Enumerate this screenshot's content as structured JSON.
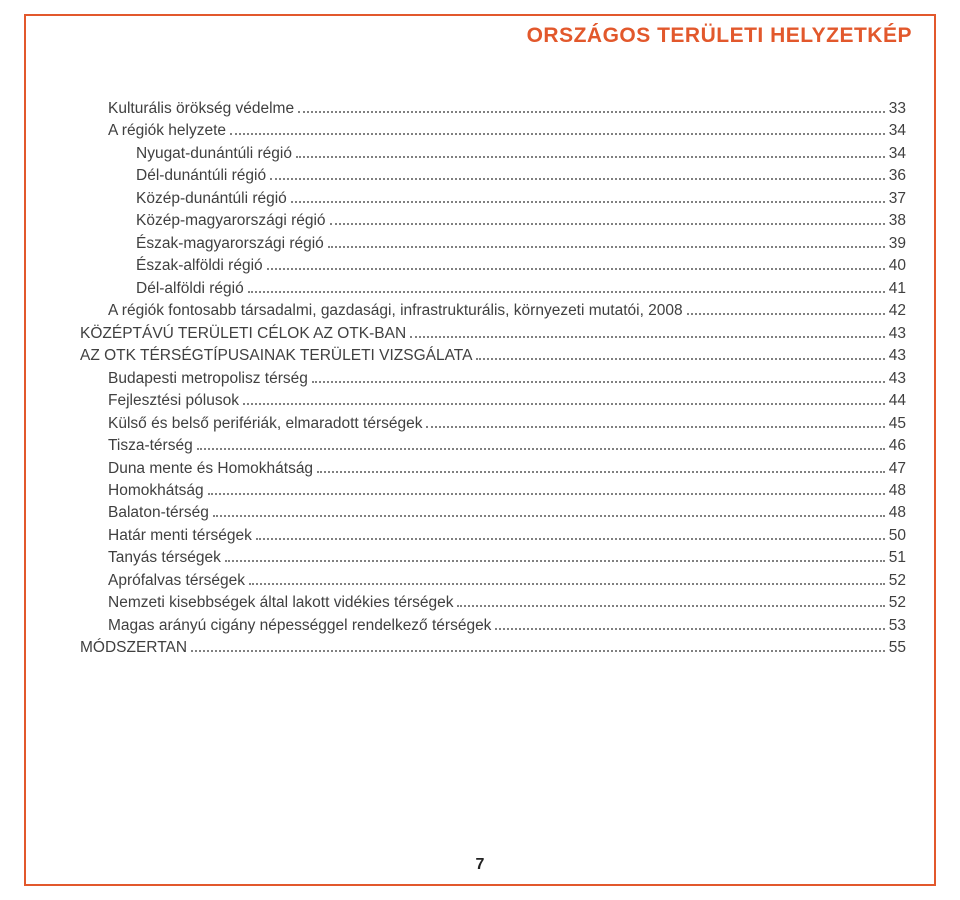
{
  "header": {
    "title": "ORSZÁGOS TERÜLETI HELYZETKÉP"
  },
  "colors": {
    "accent": "#e2582c",
    "text": "#404040",
    "dots": "#808080",
    "background": "#ffffff"
  },
  "typography": {
    "header_fontsize": 21,
    "header_weight": 700,
    "toc_fontsize": 15.5,
    "page_num_fontsize": 16
  },
  "toc": [
    {
      "label": "Kulturális örökség védelme",
      "page": "33",
      "indent": 1
    },
    {
      "label": "A régiók helyzete",
      "page": "34",
      "indent": 1
    },
    {
      "label": "Nyugat-dunántúli régió",
      "page": "34",
      "indent": 2
    },
    {
      "label": "Dél-dunántúli régió",
      "page": "36",
      "indent": 2
    },
    {
      "label": "Közép-dunántúli régió",
      "page": "37",
      "indent": 2
    },
    {
      "label": "Közép-magyarországi régió",
      "page": "38",
      "indent": 2
    },
    {
      "label": "Észak-magyarországi régió",
      "page": "39",
      "indent": 2
    },
    {
      "label": "Észak-alföldi régió",
      "page": "40",
      "indent": 2
    },
    {
      "label": "Dél-alföldi régió",
      "page": "41",
      "indent": 2
    },
    {
      "label": "A régiók fontosabb társadalmi, gazdasági, infrastrukturális, környezeti mutatói, 2008",
      "page": "42",
      "indent": 1
    },
    {
      "label": "KÖZÉPTÁVÚ TERÜLETI CÉLOK AZ OTK-BAN",
      "page": "43",
      "indent": 0
    },
    {
      "label": "AZ OTK TÉRSÉGTÍPUSAINAK TERÜLETI VIZSGÁLATA",
      "page": "43",
      "indent": 0
    },
    {
      "label": "Budapesti metropolisz térség",
      "page": "43",
      "indent": 1
    },
    {
      "label": "Fejlesztési pólusok",
      "page": "44",
      "indent": 1
    },
    {
      "label": "Külső és belső perifériák, elmaradott térségek",
      "page": "45",
      "indent": 1
    },
    {
      "label": "Tisza-térség",
      "page": "46",
      "indent": 1
    },
    {
      "label": "Duna mente és Homokhátság",
      "page": "47",
      "indent": 1
    },
    {
      "label": "Homokhátság",
      "page": "48",
      "indent": 1
    },
    {
      "label": "Balaton-térség",
      "page": "48",
      "indent": 1
    },
    {
      "label": "Határ menti térségek",
      "page": "50",
      "indent": 1
    },
    {
      "label": "Tanyás térségek",
      "page": "51",
      "indent": 1
    },
    {
      "label": "Aprófalvas térségek",
      "page": "52",
      "indent": 1
    },
    {
      "label": "Nemzeti kisebbségek által lakott vidékies térségek",
      "page": "52",
      "indent": 1
    },
    {
      "label": "Magas arányú cigány népességgel rendelkező térségek",
      "page": "53",
      "indent": 1
    },
    {
      "label": "MÓDSZERTAN",
      "page": "55",
      "indent": 0
    }
  ],
  "page_number": "7"
}
